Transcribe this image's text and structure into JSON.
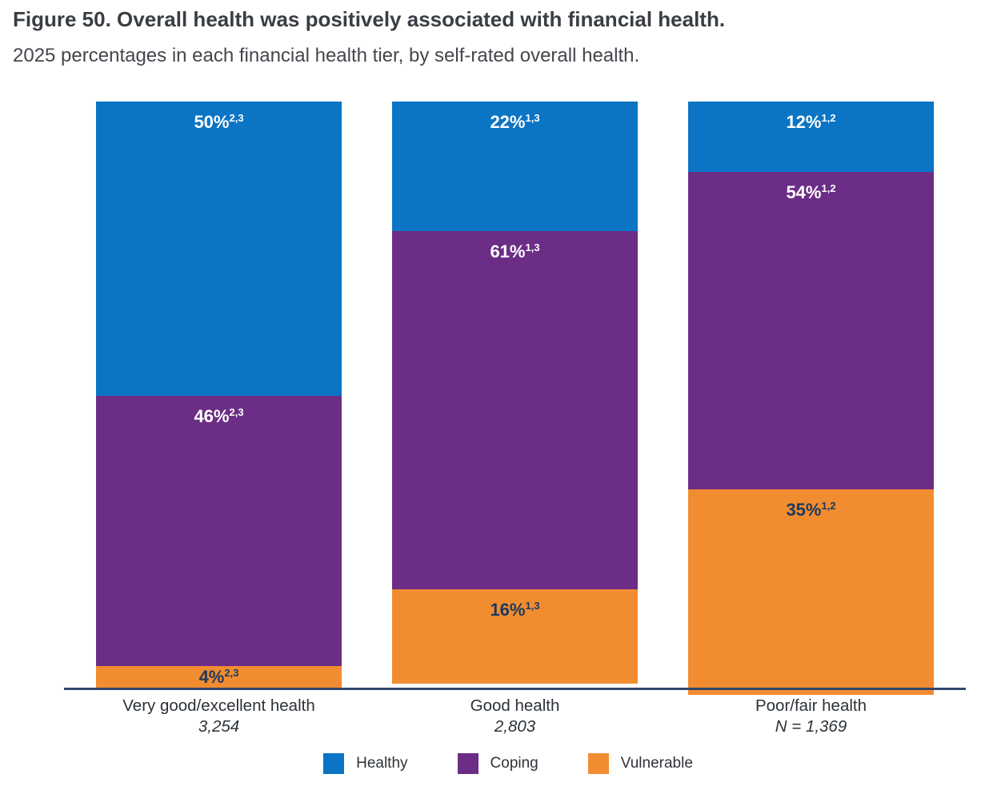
{
  "figure": {
    "title": "Figure 50. Overall health was positively associated with financial health.",
    "subtitle": "2025 percentages in each financial health tier, by self-rated overall health."
  },
  "colors": {
    "healthy_blue": "#0b74c4",
    "coping_purple": "#6c2d86",
    "vulnerable_orange": "#f28c31",
    "axis_line_navy": "#33466b",
    "label_on_dark": "#ffffff",
    "label_on_orange": "#1b3a5c"
  },
  "chart_data": {
    "type": "bar",
    "stacked": true,
    "title": "Figure 50. Overall health was positively associated with financial health.",
    "subtitle": "2025 percentages in each financial health tier, by self-rated overall health.",
    "categories": [
      "Very good/excellent health",
      "Good health",
      "Poor/fair health"
    ],
    "category_sublabels": [
      "3,254",
      "2,803",
      "N = 1,369"
    ],
    "ylim": [
      0,
      100
    ],
    "grid": false,
    "legend_position": "bottom",
    "legend": [
      "Healthy",
      "Coping",
      "Vulnerable"
    ],
    "stack_order_top_to_bottom": [
      "Healthy",
      "Coping",
      "Vulnerable"
    ],
    "series": [
      {
        "name": "Healthy",
        "color": "#0b74c4",
        "label_color": "#ffffff",
        "values": [
          50,
          22,
          12
        ],
        "superscripts": [
          "2,3",
          "1,3",
          "1,2"
        ],
        "data_labels": [
          "50%",
          "22%",
          "12%"
        ]
      },
      {
        "name": "Coping",
        "color": "#6c2d86",
        "label_color": "#ffffff",
        "values": [
          46,
          61,
          54
        ],
        "superscripts": [
          "2,3",
          "1,3",
          "1,2"
        ],
        "data_labels": [
          "46%",
          "61%",
          "54%"
        ]
      },
      {
        "name": "Vulnerable",
        "color": "#f28c31",
        "label_color": "#1b3a5c",
        "values": [
          4,
          16,
          35
        ],
        "superscripts": [
          "2,3",
          "1,3",
          "1,2"
        ],
        "data_labels": [
          "4%",
          "16%",
          "35%"
        ]
      }
    ]
  }
}
